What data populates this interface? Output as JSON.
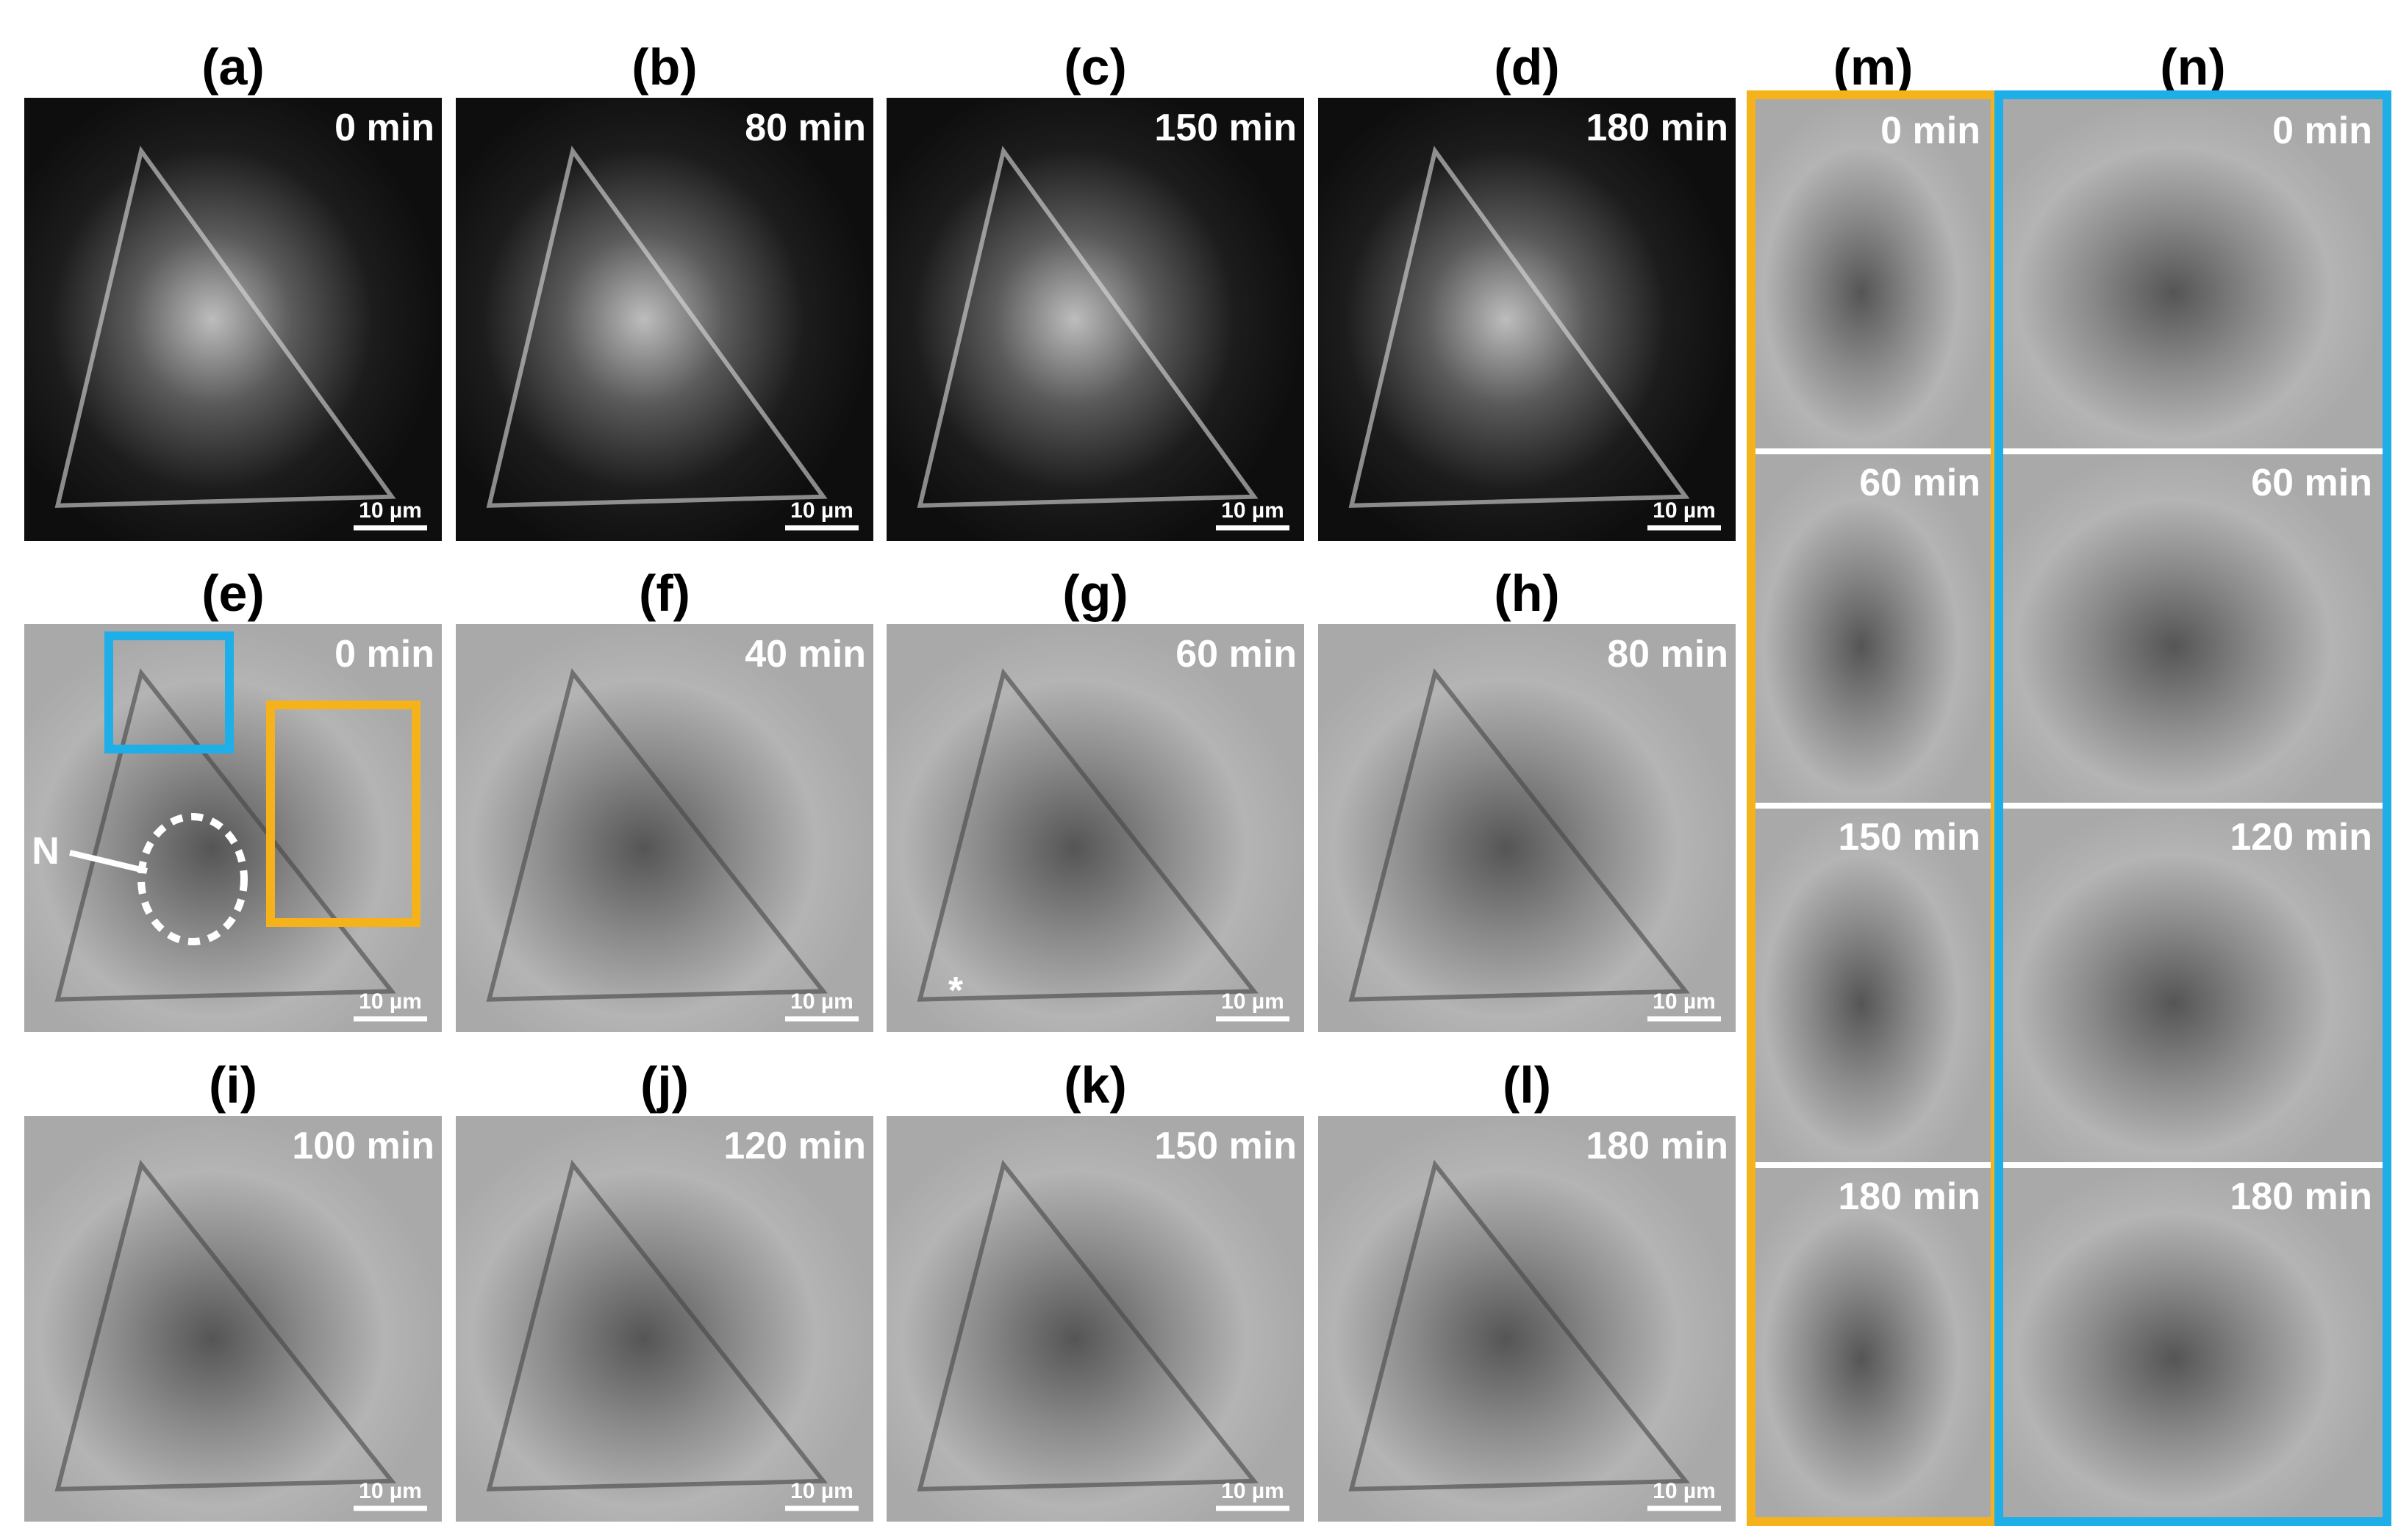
{
  "panels": [
    {
      "label": "(a)",
      "time": "0 min",
      "scale_bar": "10 µm"
    },
    {
      "label": "(b)",
      "time": "80 min",
      "scale_bar": "10 µm"
    },
    {
      "label": "(c)",
      "time": "150 min",
      "scale_bar": "10 µm"
    },
    {
      "label": "(d)",
      "time": "180 min",
      "scale_bar": "10 µm"
    },
    {
      "label": "(e)",
      "time": "0 min",
      "scale_bar": "10 µm"
    },
    {
      "label": "(f)",
      "time": "40 min",
      "scale_bar": "10 µm"
    },
    {
      "label": "(g)",
      "time": "60 min",
      "scale_bar": "10 µm"
    },
    {
      "label": "(h)",
      "time": "80 min",
      "scale_bar": "10 µm"
    },
    {
      "label": "(i)",
      "time": "100 min",
      "scale_bar": "10 µm"
    },
    {
      "label": "(j)",
      "time": "120 min",
      "scale_bar": "10 µm"
    },
    {
      "label": "(k)",
      "time": "150 min",
      "scale_bar": "10 µm"
    },
    {
      "label": "(l)",
      "time": "180 min",
      "scale_bar": "10 µm"
    }
  ],
  "side_panels": [
    {
      "label": "(m)",
      "times": [
        "0 min",
        "60 min",
        "150 min",
        "180 min"
      ]
    },
    {
      "label": "(n)",
      "times": [
        "0 min",
        "60 min",
        "120 min",
        "180 min"
      ]
    }
  ],
  "annotations": {
    "nucleus": "N",
    "asterisk": "*"
  }
}
